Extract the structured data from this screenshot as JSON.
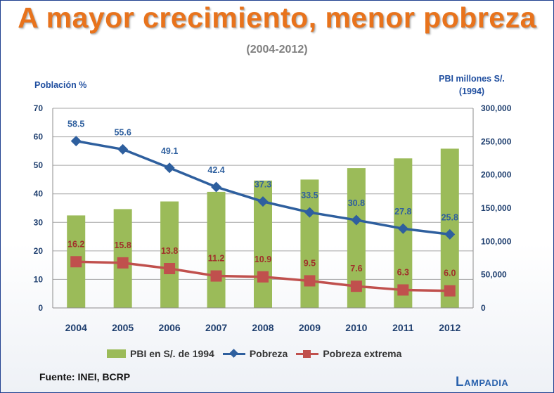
{
  "title": "A mayor crecimiento, menor pobreza",
  "subtitle": "(2004-2012)",
  "source": "Fuente: INEI, BCRP",
  "logo": "Lampadia",
  "chart_data": {
    "type": "bar",
    "categories": [
      "2004",
      "2005",
      "2006",
      "2007",
      "2008",
      "2009",
      "2010",
      "2011",
      "2012"
    ],
    "y_left": {
      "label": "Población %",
      "ylim": [
        0,
        70
      ],
      "ticks": [
        "0",
        "10",
        "20",
        "30",
        "40",
        "50",
        "60",
        "70"
      ]
    },
    "y_right": {
      "label_line1": "PBI millones S/.",
      "label_line2": "(1994)",
      "ylim": [
        0,
        300000
      ],
      "ticks": [
        "0",
        "50,000",
        "100,000",
        "150,000",
        "200,000",
        "250,000",
        "300,000"
      ]
    },
    "grid": "horizontal",
    "legend_position": "bottom",
    "series": [
      {
        "name": "PBI en S/. de 1994",
        "type": "bar",
        "axis": "right",
        "color": "#9bbb59",
        "values": [
          139000,
          148500,
          160000,
          174400,
          191400,
          192900,
          210100,
          224700,
          239300
        ]
      },
      {
        "name": "Pobreza",
        "type": "line",
        "axis": "left",
        "marker": "diamond",
        "color": "#2e5f9e",
        "values": [
          58.5,
          55.6,
          49.1,
          42.4,
          37.3,
          33.5,
          30.8,
          27.8,
          25.8
        ],
        "labels": [
          "58.5",
          "55.6",
          "49.1",
          "42.4",
          "37.3",
          "33.5",
          "30.8",
          "27.8",
          "25.8"
        ]
      },
      {
        "name": "Pobreza extrema",
        "type": "line",
        "axis": "left",
        "marker": "square",
        "color": "#c0504d",
        "values": [
          16.2,
          15.8,
          13.8,
          11.2,
          10.9,
          9.5,
          7.6,
          6.3,
          6.0
        ],
        "labels": [
          "16.2",
          "15.8",
          "13.8",
          "11.2",
          "10.9",
          "9.5",
          "7.6",
          "6.3",
          "6.0"
        ]
      }
    ]
  }
}
